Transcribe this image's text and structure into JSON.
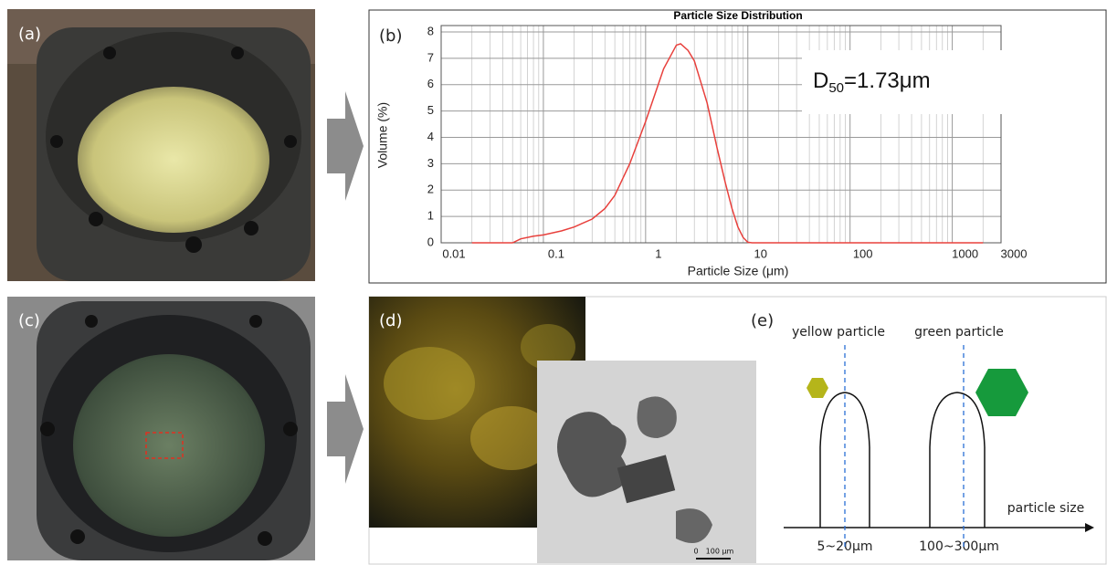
{
  "panels": {
    "a": "(a)",
    "b": "(b)",
    "c": "(c)",
    "d": "(d)",
    "e": "(e)"
  },
  "chart_data": {
    "type": "line",
    "title": "Particle Size Distribution",
    "x_label": "Particle Size (μm)",
    "y_label": "Volume (%)",
    "annotation": {
      "text": "D",
      "subscript": "50",
      "suffix": "=1.73μm"
    },
    "x": [
      0.02,
      0.05,
      0.06,
      0.08,
      0.1,
      0.15,
      0.2,
      0.3,
      0.4,
      0.5,
      0.7,
      1,
      1.5,
      2,
      2.2,
      2.6,
      3,
      4,
      5,
      6,
      7,
      8,
      9,
      10,
      11,
      100,
      1000,
      2000
    ],
    "values": [
      0,
      0,
      0.15,
      0.25,
      0.3,
      0.45,
      0.6,
      0.9,
      1.3,
      1.8,
      3.0,
      4.6,
      6.6,
      7.5,
      7.55,
      7.3,
      6.9,
      5.3,
      3.6,
      2.3,
      1.3,
      0.6,
      0.2,
      0.02,
      0,
      0,
      0,
      0
    ],
    "color": "#e8403c",
    "xscale": "log",
    "minor_grid": true,
    "grid": true,
    "xlim": [
      0.01,
      3000
    ],
    "xticks": [
      0.01,
      0.1,
      1,
      10,
      100,
      1000,
      3000
    ],
    "ylim": [
      0,
      8
    ],
    "yticks": [
      0,
      1,
      2,
      3,
      4,
      5,
      6,
      7,
      8
    ]
  },
  "micrograph_d": {
    "scale_bar_start": "0",
    "scale_bar_length": "100 μm"
  },
  "diagram_e": {
    "left_label": "yellow particle",
    "right_label": "green particle",
    "axis_label": "particle size",
    "left_range": "5~20μm",
    "right_range": "100~300μm"
  }
}
